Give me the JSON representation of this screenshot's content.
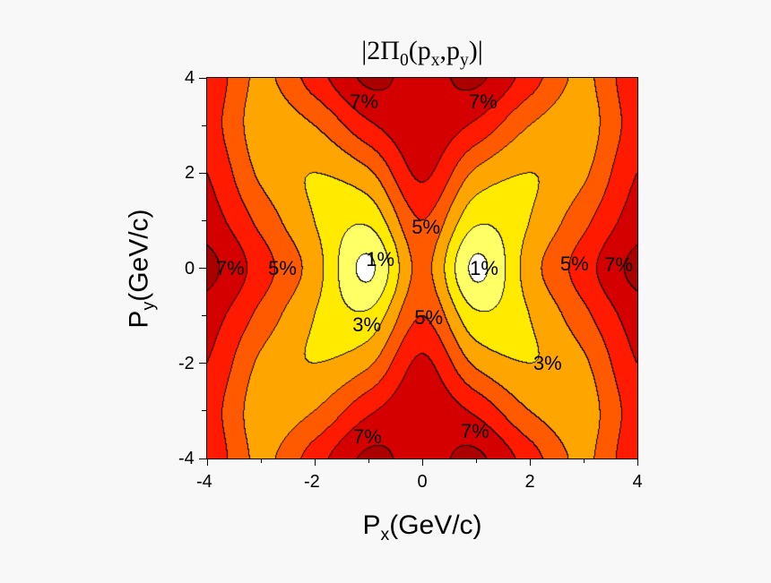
{
  "chart_data": {
    "type": "heatmap",
    "subtype": "filled-contour",
    "title": {
      "prefix": "|2Π",
      "sub0": "0",
      "mid": "(p",
      "subx": "x",
      "comma": ",p",
      "suby": "y",
      "suffix": ")|"
    },
    "xlabel": {
      "main": "P",
      "sub": "x",
      "unit": "(GeV/c)"
    },
    "ylabel": {
      "main": "P",
      "sub": "y",
      "unit": "(GeV/c)"
    },
    "xlim": [
      -4,
      4
    ],
    "ylim": [
      -4,
      4
    ],
    "xticks": [
      "-4",
      "-2",
      "0",
      "2",
      "4"
    ],
    "yticks": [
      "-4",
      "-2",
      "0",
      "2",
      "4"
    ],
    "grid": false,
    "x": [
      -4,
      -3,
      -2,
      -1,
      0,
      1,
      2,
      3,
      4
    ],
    "y": [
      -4,
      -3,
      -2,
      -1,
      0,
      1,
      2,
      3,
      4
    ],
    "z_percent": [
      [
        5.8,
        3.8,
        5.5,
        7.2,
        6.6,
        7.2,
        5.5,
        3.8,
        5.8
      ],
      [
        5.5,
        3.5,
        4.0,
        5.8,
        6.7,
        5.8,
        4.0,
        3.5,
        5.5
      ],
      [
        6.0,
        3.8,
        3.0,
        3.8,
        6.2,
        3.8,
        3.0,
        3.8,
        6.0
      ],
      [
        6.5,
        4.7,
        3.0,
        2.2,
        5.0,
        2.2,
        3.0,
        4.7,
        6.5
      ],
      [
        7.3,
        5.5,
        3.5,
        0.8,
        4.3,
        0.8,
        3.5,
        5.5,
        7.3
      ],
      [
        6.5,
        4.7,
        3.0,
        2.2,
        5.0,
        2.2,
        3.0,
        4.7,
        6.5
      ],
      [
        6.0,
        3.8,
        3.0,
        3.8,
        6.2,
        3.8,
        3.0,
        3.8,
        6.0
      ],
      [
        5.5,
        3.5,
        4.0,
        5.8,
        6.7,
        5.8,
        4.0,
        3.5,
        5.5
      ],
      [
        5.8,
        3.8,
        5.5,
        7.2,
        6.6,
        7.2,
        5.5,
        3.8,
        5.8
      ]
    ],
    "levels": [
      1,
      2,
      3,
      4,
      5,
      6,
      7
    ],
    "colors": [
      "#ffffff",
      "#ffff66",
      "#ffea00",
      "#ffa500",
      "#ff5a00",
      "#ff1a00",
      "#d40000",
      "#aa0000"
    ],
    "contour_labels": [
      {
        "text": "7%",
        "x": -1.08,
        "y": 3.5
      },
      {
        "text": "7%",
        "x": 1.13,
        "y": 3.5
      },
      {
        "text": "7%",
        "x": -3.57,
        "y": 0.0
      },
      {
        "text": "5%",
        "x": -2.6,
        "y": 0.0
      },
      {
        "text": "1%",
        "x": -0.78,
        "y": 0.18
      },
      {
        "text": "1%",
        "x": 1.15,
        "y": 0.0
      },
      {
        "text": "5%",
        "x": 0.07,
        "y": 0.86
      },
      {
        "text": "5%",
        "x": 2.83,
        "y": 0.08
      },
      {
        "text": "7%",
        "x": 3.65,
        "y": 0.07
      },
      {
        "text": "3%",
        "x": -1.03,
        "y": -1.2
      },
      {
        "text": "5%",
        "x": 0.12,
        "y": -1.05
      },
      {
        "text": "3%",
        "x": 2.33,
        "y": -2.0
      },
      {
        "text": "7%",
        "x": -1.02,
        "y": -3.54
      },
      {
        "text": "7%",
        "x": 0.98,
        "y": -3.44
      }
    ]
  }
}
